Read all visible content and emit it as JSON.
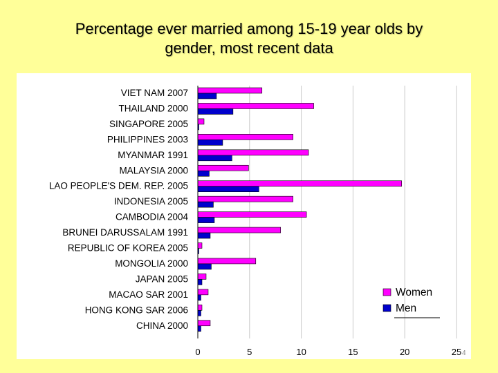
{
  "slide": {
    "title_line1": "Percentage ever married among 15-19 year olds by",
    "title_line2": "gender, most recent data",
    "page_number": "4"
  },
  "colors": {
    "women": "#FF00FF",
    "men": "#0000CC"
  },
  "chart_data": {
    "type": "bar",
    "orientation": "horizontal",
    "categories": [
      "VIET NAM 2007",
      "THAILAND 2000",
      "SINGAPORE 2005",
      "PHILIPPINES 2003",
      "MYANMAR 1991",
      "MALAYSIA 2000",
      "LAO PEOPLE'S DEM. REP. 2005",
      "INDONESIA 2005",
      "CAMBODIA 2004",
      "BRUNEI DARUSSALAM 1991",
      "REPUBLIC OF KOREA 2005",
      "MONGOLIA 2000",
      "JAPAN 2005",
      "MACAO SAR 2001",
      "HONG KONG SAR  2006",
      "CHINA 2000"
    ],
    "series": [
      {
        "name": "Women",
        "values": [
          6.2,
          11.2,
          0.6,
          9.2,
          10.7,
          4.9,
          19.7,
          9.2,
          10.5,
          8.0,
          0.4,
          5.6,
          0.8,
          1.0,
          0.4,
          1.2
        ]
      },
      {
        "name": "Men",
        "values": [
          1.8,
          3.4,
          0.1,
          2.4,
          3.3,
          1.1,
          5.9,
          1.5,
          1.6,
          1.2,
          0.1,
          1.3,
          0.4,
          0.3,
          0.3,
          0.3
        ]
      }
    ],
    "x_ticks": [
      "0",
      "5",
      "10",
      "15",
      "20",
      "25"
    ],
    "xlim": [
      0,
      25
    ],
    "grid": true,
    "legend": "bottom-right",
    "title": "",
    "xlabel": "",
    "ylabel": ""
  }
}
